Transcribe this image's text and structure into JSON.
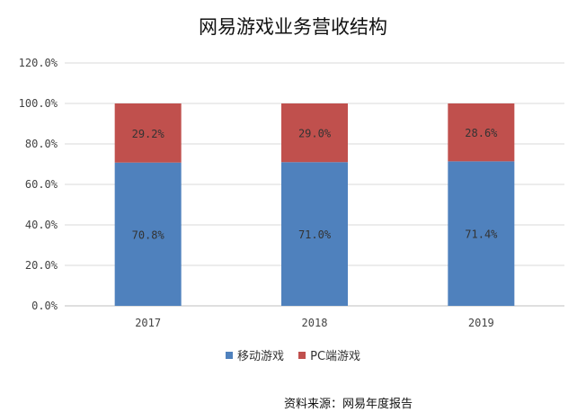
{
  "chart_data": {
    "type": "bar",
    "stacked": true,
    "title": "网易游戏业务营收结构",
    "categories": [
      "2017",
      "2018",
      "2019"
    ],
    "series": [
      {
        "name": "移动游戏",
        "values": [
          70.8,
          71.0,
          71.4
        ],
        "labels": [
          "70.8%",
          "71.0%",
          "71.4%"
        ],
        "color": "#4f81bd"
      },
      {
        "name": "PC端游戏",
        "values": [
          29.2,
          29.0,
          28.6
        ],
        "labels": [
          "29.2%",
          "29.0%",
          "28.6%"
        ],
        "color": "#c0504d"
      }
    ],
    "y_ticks": [
      "0.0%",
      "20.0%",
      "40.0%",
      "60.0%",
      "80.0%",
      "100.0%",
      "120.0%"
    ],
    "ylim": [
      0,
      120
    ],
    "grid": true,
    "legend_position": "bottom"
  },
  "source_text": "资料来源：网易年度报告"
}
